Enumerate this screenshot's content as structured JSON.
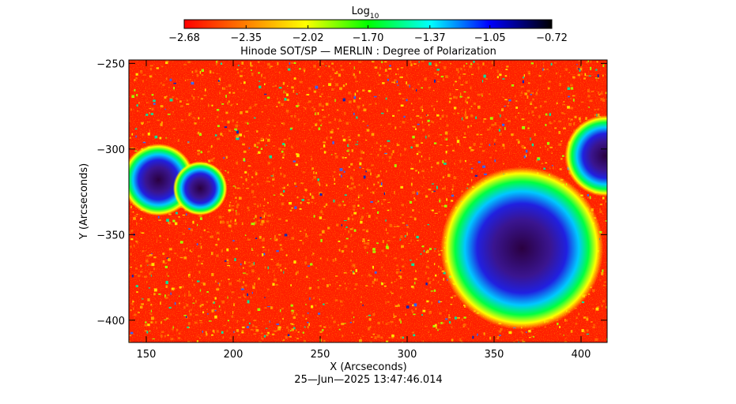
{
  "chart_data": {
    "type": "heatmap",
    "title": "Hinode SOT/SP — MERLIN : Degree of Polarization",
    "xlabel": "X (Arcseconds)",
    "ylabel": "Y (Arcseconds)",
    "xlim": [
      140,
      415
    ],
    "ylim": [
      -413,
      -248
    ],
    "x_ticks": [
      "150",
      "200",
      "250",
      "300",
      "350",
      "400"
    ],
    "x_tick_values": [
      150,
      200,
      250,
      300,
      350,
      400
    ],
    "y_ticks": [
      "−250",
      "−300",
      "−350",
      "−400"
    ],
    "y_tick_values": [
      -250,
      -300,
      -350,
      -400
    ],
    "colorbar": {
      "label_base": "Log",
      "label_sub": "10",
      "ticks": [
        "−2.68",
        "−2.35",
        "−2.02",
        "−1.70",
        "−1.37",
        "−1.05",
        "−0.72"
      ],
      "tick_values": [
        -2.68,
        -2.35,
        -2.02,
        -1.7,
        -1.37,
        -1.05,
        -0.72
      ],
      "range": [
        -2.68,
        -0.72
      ],
      "colors": [
        "#ff0000",
        "#ff8000",
        "#ffff00",
        "#00ff00",
        "#00ffff",
        "#0000ff",
        "#000000"
      ]
    },
    "features": [
      {
        "kind": "sunspot",
        "x": 157,
        "y": -318,
        "r": 8,
        "value": -0.9
      },
      {
        "kind": "sunspot",
        "x": 181,
        "y": -323,
        "r": 6,
        "value": -1.0
      },
      {
        "kind": "sunspot",
        "x": 366,
        "y": -358,
        "r": 18,
        "value": -0.8
      },
      {
        "kind": "sunspot",
        "x": 414,
        "y": -304,
        "r": 9,
        "value": -0.9
      }
    ],
    "grid": false,
    "legend": "colorbar-top"
  },
  "footer": {
    "timestamp": "25—Jun—2025 13:47:46.014"
  }
}
